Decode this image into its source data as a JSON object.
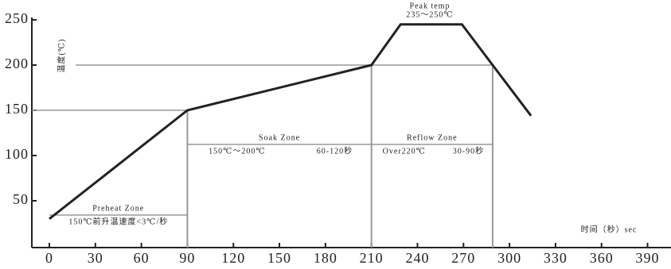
{
  "chart_data": {
    "type": "line",
    "y_label": "温度(℃)",
    "x_label": "时间（秒）sec",
    "peak_label": "Peak temp",
    "peak_range": "235～250℃",
    "x": [
      0,
      90,
      210,
      229,
      269,
      289,
      314
    ],
    "series": [
      {
        "color": "#222222",
        "values": [
          30,
          150,
          200,
          245,
          245,
          200,
          144
        ]
      }
    ],
    "zones": [
      {
        "name": "Preheat Zone",
        "notes": [
          "150℃前升温速度<3℃/秒"
        ]
      },
      {
        "name": "Soak Zone",
        "notes": [
          "150℃～200℃",
          "60-120秒"
        ]
      },
      {
        "name": "Reflow Zone",
        "notes": [
          "Over220℃",
          "30-90秒"
        ]
      }
    ],
    "xlim": [
      0,
      400
    ],
    "ylim": [
      0,
      270
    ],
    "xticks": [
      0,
      30,
      60,
      90,
      120,
      150,
      180,
      210,
      240,
      270,
      300,
      330,
      360,
      390
    ],
    "yticks": [
      50,
      100,
      150,
      200,
      250
    ]
  }
}
